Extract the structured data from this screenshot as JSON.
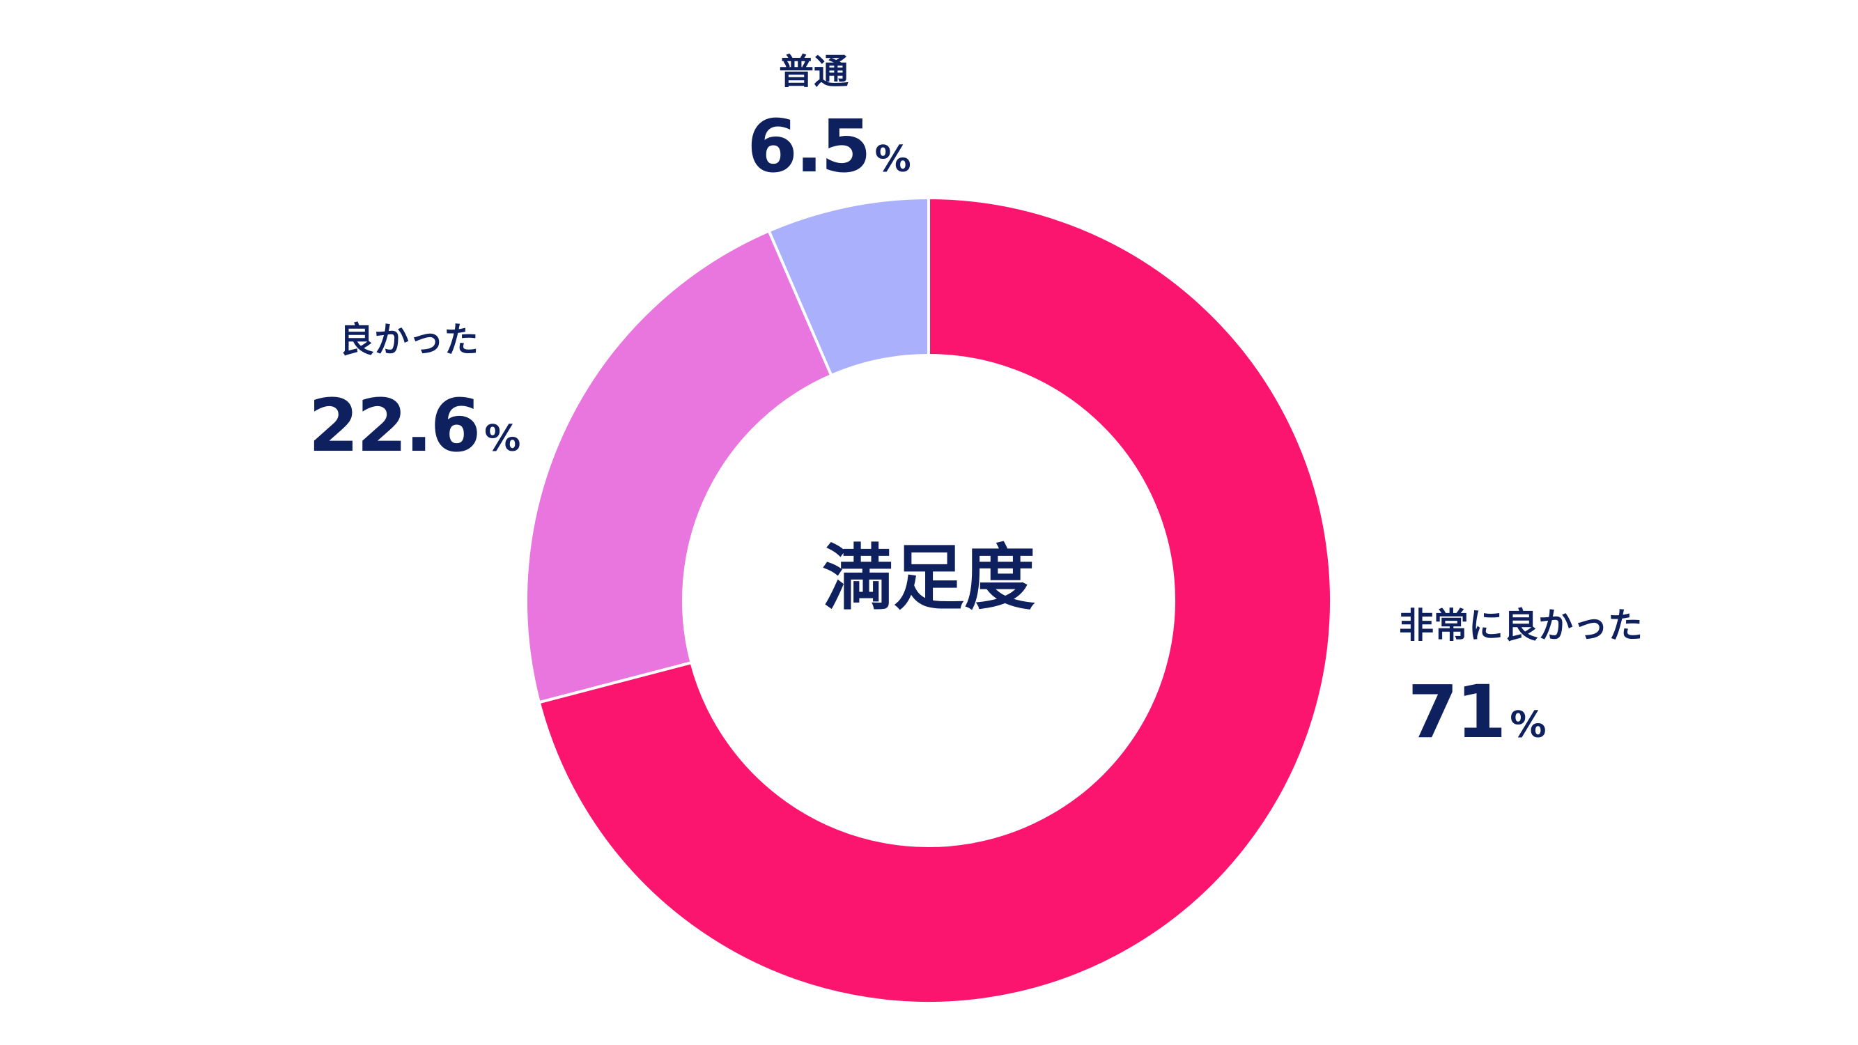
{
  "chart_data": {
    "type": "pie",
    "center_label": "満足度",
    "unit": "%",
    "slices": [
      {
        "label": "非常に良かった",
        "value": 71,
        "display": "71",
        "color": "#fc156f"
      },
      {
        "label": "良かった",
        "value": 22.6,
        "display": "22.6",
        "color": "#e876de"
      },
      {
        "label": "普通",
        "value": 6.5,
        "display": "6.5",
        "color": "#aab0fc"
      }
    ],
    "text_color": "#0f205f"
  }
}
